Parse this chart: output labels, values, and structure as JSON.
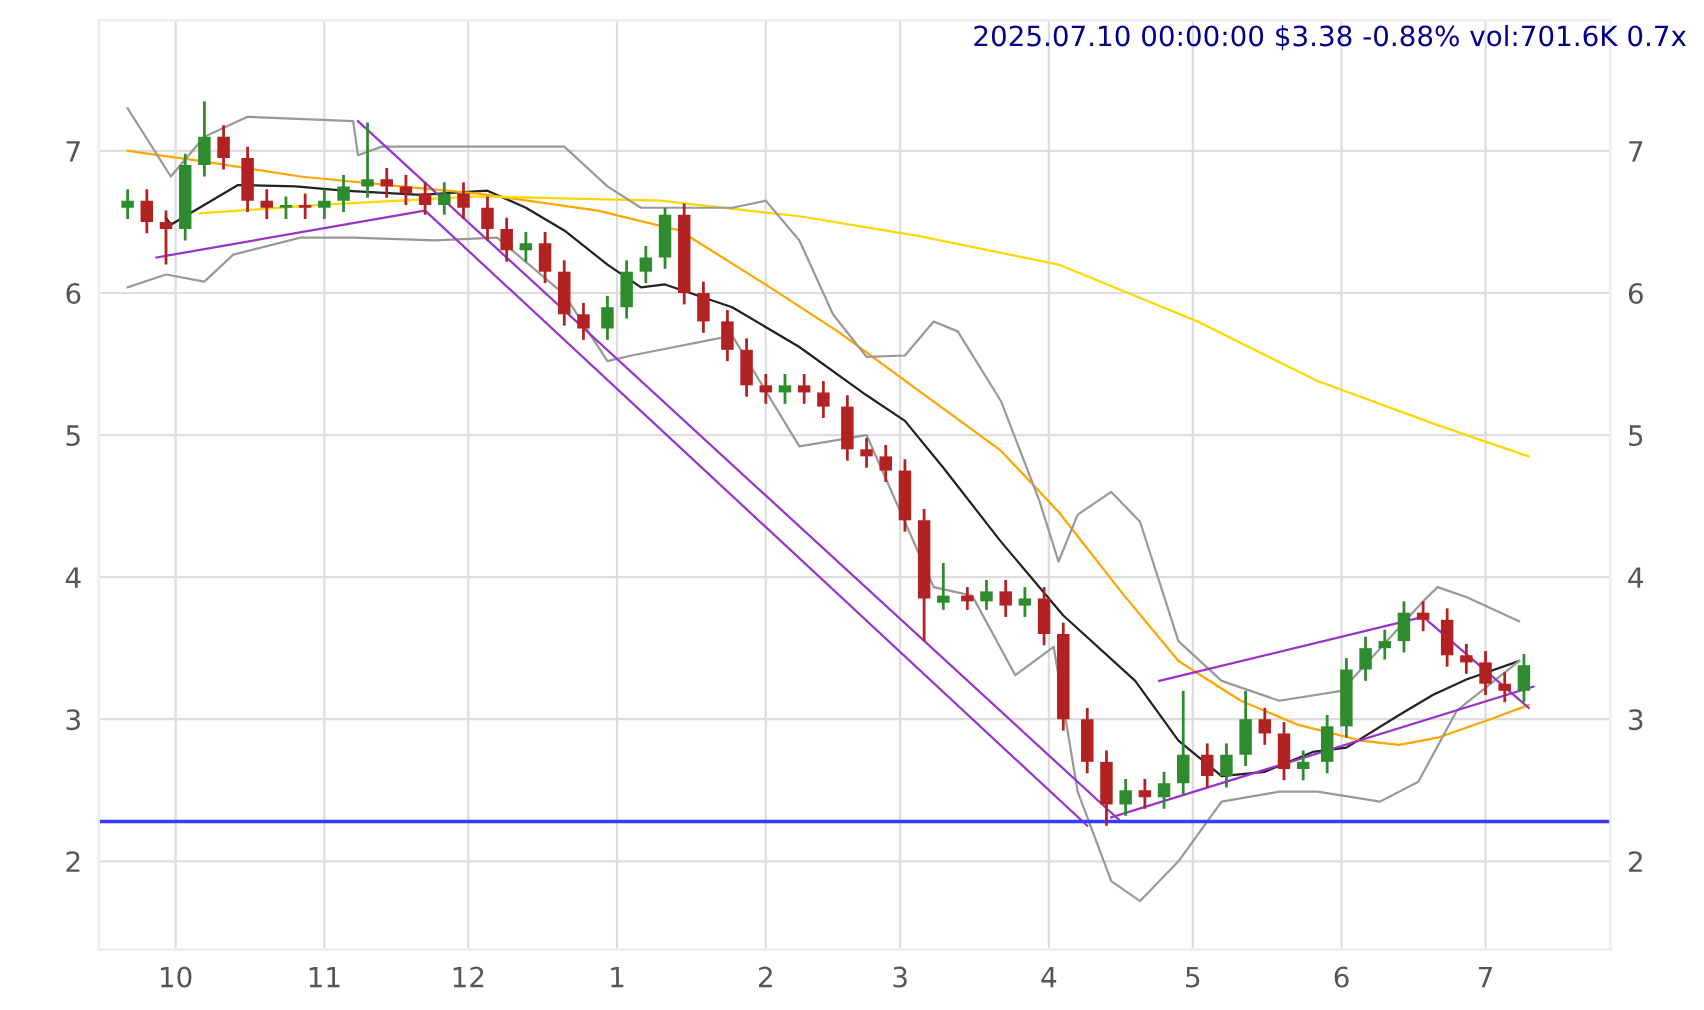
{
  "chart_data": {
    "type": "candlestick",
    "title": "2025.07.10 00:00:00 $3.38 -0.88% vol:701.6K 0.7x",
    "x": [
      "2024-09-21",
      "2024-09-25",
      "2024-09-29",
      "2024-10-03",
      "2024-10-07",
      "2024-10-11",
      "2024-10-16",
      "2024-10-20",
      "2024-10-24",
      "2024-10-28",
      "2024-11-01",
      "2024-11-05",
      "2024-11-10",
      "2024-11-14",
      "2024-11-18",
      "2024-11-22",
      "2024-11-26",
      "2024-11-30",
      "2024-12-05",
      "2024-12-09",
      "2024-12-13",
      "2024-12-17",
      "2024-12-21",
      "2024-12-25",
      "2024-12-30",
      "2025-01-03",
      "2025-01-07",
      "2025-01-11",
      "2025-01-15",
      "2025-01-19",
      "2025-01-24",
      "2025-01-28",
      "2025-02-01",
      "2025-02-05",
      "2025-02-09",
      "2025-02-13",
      "2025-02-18",
      "2025-02-22",
      "2025-02-26",
      "2025-03-02",
      "2025-03-06",
      "2025-03-10",
      "2025-03-15",
      "2025-03-19",
      "2025-03-23",
      "2025-03-27",
      "2025-03-31",
      "2025-04-04",
      "2025-04-09",
      "2025-04-13",
      "2025-04-17",
      "2025-04-21",
      "2025-04-25",
      "2025-04-29",
      "2025-05-04",
      "2025-05-08",
      "2025-05-12",
      "2025-05-16",
      "2025-05-20",
      "2025-05-24",
      "2025-05-29",
      "2025-06-02",
      "2025-06-06",
      "2025-06-10",
      "2025-06-14",
      "2025-06-18",
      "2025-06-23",
      "2025-06-27",
      "2025-07-01",
      "2025-07-05",
      "2025-07-09"
    ],
    "ohlc": [
      [
        6.6,
        6.73,
        6.52,
        6.65
      ],
      [
        6.65,
        6.73,
        6.42,
        6.5
      ],
      [
        6.5,
        6.58,
        6.2,
        6.45
      ],
      [
        6.45,
        6.98,
        6.37,
        6.9
      ],
      [
        6.9,
        7.35,
        6.82,
        7.1
      ],
      [
        7.1,
        7.18,
        6.87,
        6.95
      ],
      [
        6.95,
        7.03,
        6.57,
        6.65
      ],
      [
        6.65,
        6.73,
        6.52,
        6.6
      ],
      [
        6.6,
        6.68,
        6.52,
        6.62
      ],
      [
        6.62,
        6.7,
        6.52,
        6.6
      ],
      [
        6.6,
        6.73,
        6.52,
        6.65
      ],
      [
        6.65,
        6.83,
        6.57,
        6.75
      ],
      [
        6.75,
        7.2,
        6.67,
        6.8
      ],
      [
        6.8,
        6.88,
        6.67,
        6.75
      ],
      [
        6.75,
        6.83,
        6.62,
        6.7
      ],
      [
        6.7,
        6.78,
        6.55,
        6.62
      ],
      [
        6.62,
        6.78,
        6.55,
        6.7
      ],
      [
        6.7,
        6.78,
        6.52,
        6.6
      ],
      [
        6.6,
        6.68,
        6.37,
        6.45
      ],
      [
        6.45,
        6.53,
        6.22,
        6.3
      ],
      [
        6.3,
        6.43,
        6.22,
        6.35
      ],
      [
        6.35,
        6.43,
        6.07,
        6.15
      ],
      [
        6.15,
        6.23,
        5.77,
        5.85
      ],
      [
        5.85,
        5.93,
        5.67,
        5.75
      ],
      [
        5.75,
        5.98,
        5.67,
        5.9
      ],
      [
        5.9,
        6.23,
        5.82,
        6.15
      ],
      [
        6.15,
        6.33,
        6.07,
        6.25
      ],
      [
        6.25,
        6.6,
        6.17,
        6.55
      ],
      [
        6.55,
        6.63,
        5.92,
        6.0
      ],
      [
        6.0,
        6.08,
        5.72,
        5.8
      ],
      [
        5.8,
        5.88,
        5.52,
        5.6
      ],
      [
        5.6,
        5.68,
        5.27,
        5.35
      ],
      [
        5.35,
        5.43,
        5.22,
        5.3
      ],
      [
        5.3,
        5.43,
        5.22,
        5.35
      ],
      [
        5.35,
        5.43,
        5.22,
        5.3
      ],
      [
        5.3,
        5.38,
        5.12,
        5.2
      ],
      [
        5.2,
        5.28,
        4.82,
        4.9
      ],
      [
        4.9,
        4.98,
        4.77,
        4.85
      ],
      [
        4.85,
        4.93,
        4.67,
        4.75
      ],
      [
        4.75,
        4.83,
        4.32,
        4.4
      ],
      [
        4.4,
        4.48,
        3.55,
        3.85
      ],
      [
        3.82,
        4.1,
        3.77,
        3.87
      ],
      [
        3.87,
        3.93,
        3.77,
        3.83
      ],
      [
        3.83,
        3.98,
        3.77,
        3.9
      ],
      [
        3.9,
        3.98,
        3.72,
        3.8
      ],
      [
        3.8,
        3.93,
        3.72,
        3.85
      ],
      [
        3.85,
        3.93,
        3.52,
        3.6
      ],
      [
        3.6,
        3.68,
        2.92,
        3.0
      ],
      [
        3.0,
        3.08,
        2.62,
        2.7
      ],
      [
        2.7,
        2.78,
        2.25,
        2.4
      ],
      [
        2.4,
        2.58,
        2.32,
        2.5
      ],
      [
        2.5,
        2.58,
        2.37,
        2.45
      ],
      [
        2.45,
        2.63,
        2.37,
        2.55
      ],
      [
        2.55,
        3.2,
        2.47,
        2.75
      ],
      [
        2.75,
        2.83,
        2.52,
        2.6
      ],
      [
        2.6,
        2.83,
        2.52,
        2.75
      ],
      [
        2.75,
        3.2,
        2.67,
        3.0
      ],
      [
        3.0,
        3.08,
        2.82,
        2.9
      ],
      [
        2.9,
        2.98,
        2.57,
        2.65
      ],
      [
        2.65,
        2.78,
        2.57,
        2.7
      ],
      [
        2.7,
        3.03,
        2.62,
        2.95
      ],
      [
        2.95,
        3.43,
        2.87,
        3.35
      ],
      [
        3.35,
        3.58,
        3.27,
        3.5
      ],
      [
        3.5,
        3.63,
        3.42,
        3.55
      ],
      [
        3.55,
        3.83,
        3.47,
        3.75
      ],
      [
        3.75,
        3.83,
        3.62,
        3.7
      ],
      [
        3.7,
        3.78,
        3.37,
        3.45
      ],
      [
        3.45,
        3.53,
        3.32,
        3.4
      ],
      [
        3.4,
        3.48,
        3.17,
        3.25
      ],
      [
        3.25,
        3.33,
        3.12,
        3.2
      ],
      [
        3.2,
        3.46,
        3.12,
        3.38
      ]
    ],
    "colors": [
      "#2e8b2e",
      "#b22222",
      "#b22222",
      "#2e8b2e",
      "#2e8b2e",
      "#b22222",
      "#b22222",
      "#b22222",
      "#2e8b2e",
      "#b22222",
      "#2e8b2e",
      "#2e8b2e",
      "#2e8b2e",
      "#b22222",
      "#b22222",
      "#b22222",
      "#2e8b2e",
      "#b22222",
      "#b22222",
      "#b22222",
      "#2e8b2e",
      "#b22222",
      "#b22222",
      "#b22222",
      "#2e8b2e",
      "#2e8b2e",
      "#2e8b2e",
      "#2e8b2e",
      "#b22222",
      "#b22222",
      "#b22222",
      "#b22222",
      "#b22222",
      "#2e8b2e",
      "#b22222",
      "#b22222",
      "#b22222",
      "#b22222",
      "#b22222",
      "#b22222",
      "#b22222",
      "#2e8b2e",
      "#b22222",
      "#2e8b2e",
      "#b22222",
      "#2e8b2e",
      "#b22222",
      "#b22222",
      "#b22222",
      "#b22222",
      "#2e8b2e",
      "#b22222",
      "#2e8b2e",
      "#2e8b2e",
      "#b22222",
      "#2e8b2e",
      "#2e8b2e",
      "#b22222",
      "#b22222",
      "#2e8b2e",
      "#2e8b2e",
      "#2e8b2e",
      "#2e8b2e",
      "#2e8b2e",
      "#2e8b2e",
      "#b22222",
      "#b22222",
      "#b22222",
      "#b22222",
      "#b22222",
      "#2e8b2e"
    ],
    "series": [
      {
        "type": "line",
        "color": "#222222",
        "x": [
          "2024-09-29",
          "2024-09-30",
          "2024-10-14",
          "2024-10-26",
          "2024-11-05",
          "2024-11-21",
          "2024-12-05",
          "2024-12-13",
          "2024-12-21",
          "2024-12-30",
          "2025-01-06",
          "2025-01-11",
          "2025-01-25",
          "2025-02-08",
          "2025-02-22",
          "2025-03-02",
          "2025-03-10",
          "2025-03-22",
          "2025-04-04",
          "2025-04-19",
          "2025-04-28",
          "2025-05-07",
          "2025-05-16",
          "2025-05-26",
          "2025-06-02",
          "2025-06-13",
          "2025-06-20",
          "2025-06-27",
          "2025-07-08"
        ],
        "values": [
          6.53,
          6.48,
          6.76,
          6.75,
          6.72,
          6.69,
          6.72,
          6.6,
          6.44,
          6.2,
          6.04,
          6.06,
          5.9,
          5.62,
          5.28,
          5.1,
          4.77,
          4.25,
          3.73,
          3.27,
          2.85,
          2.6,
          2.63,
          2.77,
          2.8,
          3.03,
          3.17,
          3.28,
          3.41
        ]
      },
      {
        "type": "line",
        "color": "#ffa500",
        "x": [
          "2024-09-21",
          "2024-10-06",
          "2024-10-27",
          "2024-11-17",
          "2024-12-03",
          "2024-12-28",
          "2025-01-14",
          "2025-01-31",
          "2025-02-16",
          "2025-03-05",
          "2025-03-22",
          "2025-04-03",
          "2025-04-16",
          "2025-04-28",
          "2025-05-11",
          "2025-05-23",
          "2025-06-05",
          "2025-06-13",
          "2025-06-21",
          "2025-07-02",
          "2025-07-10"
        ],
        "values": [
          7.0,
          6.93,
          6.82,
          6.75,
          6.7,
          6.58,
          6.44,
          6.08,
          5.73,
          5.31,
          4.89,
          4.46,
          3.9,
          3.41,
          3.13,
          2.96,
          2.85,
          2.82,
          2.87,
          3.0,
          3.1
        ]
      },
      {
        "type": "line",
        "color": "#ffd700",
        "x": [
          "2024-10-06",
          "2024-10-31",
          "2024-12-03",
          "2025-01-10",
          "2025-02-08",
          "2025-03-05",
          "2025-04-03",
          "2025-05-02",
          "2025-05-27",
          "2025-06-21",
          "2025-07-10"
        ],
        "values": [
          6.56,
          6.62,
          6.68,
          6.65,
          6.54,
          6.4,
          6.2,
          5.8,
          5.38,
          5.07,
          4.85
        ]
      },
      {
        "type": "line",
        "color": "#999999",
        "x": [
          "2024-09-21",
          "2024-09-30",
          "2024-10-07",
          "2024-10-16",
          "2024-11-07",
          "2024-11-08",
          "2024-11-13",
          "2024-11-24",
          "2024-12-21",
          "2024-12-30",
          "2025-01-06",
          "2025-01-25",
          "2025-02-01",
          "2025-02-08",
          "2025-02-15",
          "2025-02-22",
          "2025-03-02",
          "2025-03-08",
          "2025-03-13",
          "2025-03-22",
          "2025-03-30",
          "2025-04-03",
          "2025-04-07",
          "2025-04-14",
          "2025-04-20",
          "2025-04-28",
          "2025-05-07",
          "2025-05-19",
          "2025-06-01",
          "2025-06-18",
          "2025-06-21",
          "2025-06-27",
          "2025-07-08"
        ],
        "values": [
          7.3,
          6.82,
          7.1,
          7.24,
          7.21,
          6.97,
          7.03,
          7.03,
          7.03,
          6.75,
          6.6,
          6.6,
          6.65,
          6.37,
          5.85,
          5.55,
          5.56,
          5.8,
          5.73,
          5.24,
          4.54,
          4.11,
          4.44,
          4.6,
          4.39,
          3.55,
          3.27,
          3.13,
          3.2,
          3.83,
          3.93,
          3.86,
          3.69
        ]
      },
      {
        "type": "line",
        "color": "#999999",
        "x": [
          "2024-09-21",
          "2024-09-29",
          "2024-10-07",
          "2024-10-13",
          "2024-10-27",
          "2024-11-07",
          "2024-11-24",
          "2024-12-07",
          "2024-12-21",
          "2024-12-30",
          "2025-01-04",
          "2025-01-25",
          "2025-02-08",
          "2025-02-22",
          "2025-03-08",
          "2025-03-16",
          "2025-03-25",
          "2025-04-02",
          "2025-04-07",
          "2025-04-14",
          "2025-04-20",
          "2025-04-28",
          "2025-05-07",
          "2025-05-19",
          "2025-05-27",
          "2025-06-09",
          "2025-06-17",
          "2025-06-25",
          "2025-07-08"
        ],
        "values": [
          6.04,
          6.13,
          6.08,
          6.27,
          6.39,
          6.39,
          6.37,
          6.39,
          5.99,
          5.52,
          5.56,
          5.7,
          4.92,
          5.0,
          3.93,
          3.87,
          3.31,
          3.51,
          2.49,
          1.86,
          1.72,
          2.0,
          2.42,
          2.49,
          2.49,
          2.42,
          2.56,
          3.06,
          3.41
        ]
      },
      {
        "type": "line",
        "color": "#9932cc",
        "x": [
          "2024-09-27",
          "2024-11-22"
        ],
        "values": [
          6.25,
          6.58
        ]
      },
      {
        "type": "line",
        "color": "#9932cc",
        "x": [
          "2024-11-08",
          "2025-04-16"
        ],
        "values": [
          7.21,
          2.28
        ]
      },
      {
        "type": "line",
        "color": "#9932cc",
        "x": [
          "2024-11-22",
          "2025-04-09"
        ],
        "values": [
          6.58,
          2.25
        ]
      },
      {
        "type": "line",
        "color": "#9932cc",
        "x": [
          "2025-04-14",
          "2025-07-11"
        ],
        "values": [
          2.31,
          3.23
        ]
      },
      {
        "type": "line",
        "color": "#9932cc",
        "x": [
          "2025-04-24",
          "2025-06-18"
        ],
        "values": [
          3.27,
          3.72
        ]
      },
      {
        "type": "line",
        "color": "#9932cc",
        "x": [
          "2025-06-18",
          "2025-07-10"
        ],
        "values": [
          3.72,
          3.08
        ]
      }
    ],
    "ref_lines": [
      {
        "axis": "y",
        "value": 2.28,
        "color": "#3a3aff"
      }
    ],
    "xlim": [
      "2024-09-15",
      "2025-07-27"
    ],
    "xticks": [
      {
        "value": "2024-10-01",
        "label": "10"
      },
      {
        "value": "2024-11-01",
        "label": "11"
      },
      {
        "value": "2024-12-01",
        "label": "12"
      },
      {
        "value": "2025-01-01",
        "label": "1"
      },
      {
        "value": "2025-02-01",
        "label": "2"
      },
      {
        "value": "2025-03-01",
        "label": "3"
      },
      {
        "value": "2025-04-01",
        "label": "4"
      },
      {
        "value": "2025-05-01",
        "label": "5"
      },
      {
        "value": "2025-06-01",
        "label": "6"
      },
      {
        "value": "2025-07-01",
        "label": "7"
      }
    ],
    "ylim": [
      1.38,
      7.92
    ],
    "yticks": [
      2,
      3,
      4,
      5,
      6,
      7
    ],
    "y2lim": [
      1.38,
      7.92
    ],
    "y2ticks": [
      2,
      3,
      4,
      5,
      6,
      7
    ],
    "grid": true
  }
}
